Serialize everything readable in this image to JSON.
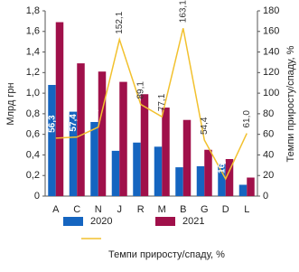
{
  "chart_data": {
    "type": "bar",
    "categories": [
      "A",
      "C",
      "N",
      "J",
      "R",
      "M",
      "B",
      "G",
      "D",
      "L"
    ],
    "ylabel": "Млрд грн",
    "y2label": "Темпи приросту/спаду, %",
    "ylim": [
      0,
      1.8
    ],
    "yticks": [
      0,
      {
        "value": 0.2,
        "label": "0,2"
      },
      {
        "value": 0.4,
        "label": "0,4"
      },
      {
        "value": 0.6,
        "label": "0,6"
      },
      {
        "value": 0.8,
        "label": "0,8"
      },
      {
        "value": 1.0,
        "label": "1,0"
      },
      {
        "value": 1.2,
        "label": "1,2"
      },
      {
        "value": 1.4,
        "label": "1,4"
      },
      {
        "value": 1.6,
        "label": "1,6"
      },
      {
        "value": 1.8,
        "label": "1,8"
      }
    ],
    "y2lim": [
      0,
      180
    ],
    "y2ticks": [
      0,
      20,
      40,
      60,
      80,
      100,
      120,
      140,
      160,
      180
    ],
    "series": [
      {
        "name": "2020",
        "color": "#1565c0",
        "values": [
          1.08,
          0.82,
          0.72,
          0.44,
          0.52,
          0.48,
          0.28,
          0.29,
          0.31,
          0.11
        ]
      },
      {
        "name": "2021",
        "color": "#a0104a",
        "values": [
          1.69,
          1.29,
          1.21,
          1.11,
          0.99,
          0.86,
          0.74,
          0.45,
          0.36,
          0.18
        ]
      },
      {
        "name": "Темпи приросту/спаду, %",
        "type": "line",
        "axis": "y2",
        "color": "#f2c12e",
        "values": [
          56.3,
          57.4,
          67.0,
          152.1,
          89.1,
          77.1,
          163.1,
          54.4,
          16.7,
          61.0
        ],
        "value_labels": [
          "56,3",
          "57,4",
          "67,0",
          "152,1",
          "89,1",
          "77,1",
          "163,1",
          "54,4",
          "16,7",
          "61,0"
        ]
      }
    ]
  }
}
